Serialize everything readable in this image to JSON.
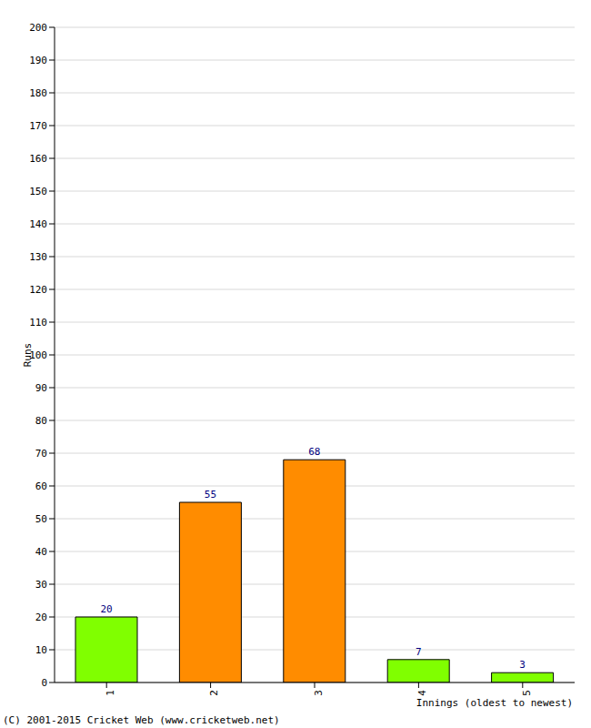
{
  "chart_data": {
    "type": "bar",
    "categories": [
      "1",
      "2",
      "3",
      "4",
      "5"
    ],
    "values": [
      20,
      55,
      68,
      7,
      3
    ],
    "colors": [
      "#80ff00",
      "#ff8c00",
      "#ff8c00",
      "#80ff00",
      "#80ff00"
    ],
    "ylim": [
      0,
      200
    ],
    "yticks": [
      0,
      10,
      20,
      30,
      40,
      50,
      60,
      70,
      80,
      90,
      100,
      110,
      120,
      130,
      140,
      150,
      160,
      170,
      180,
      190,
      200
    ],
    "y_label": "Runs",
    "x_label": "Innings (oldest to newest)",
    "annotations": [
      "(C) 2001-2015 Cricket Web (www.cricketweb.net)"
    ],
    "grid": true,
    "data_labels": true
  }
}
